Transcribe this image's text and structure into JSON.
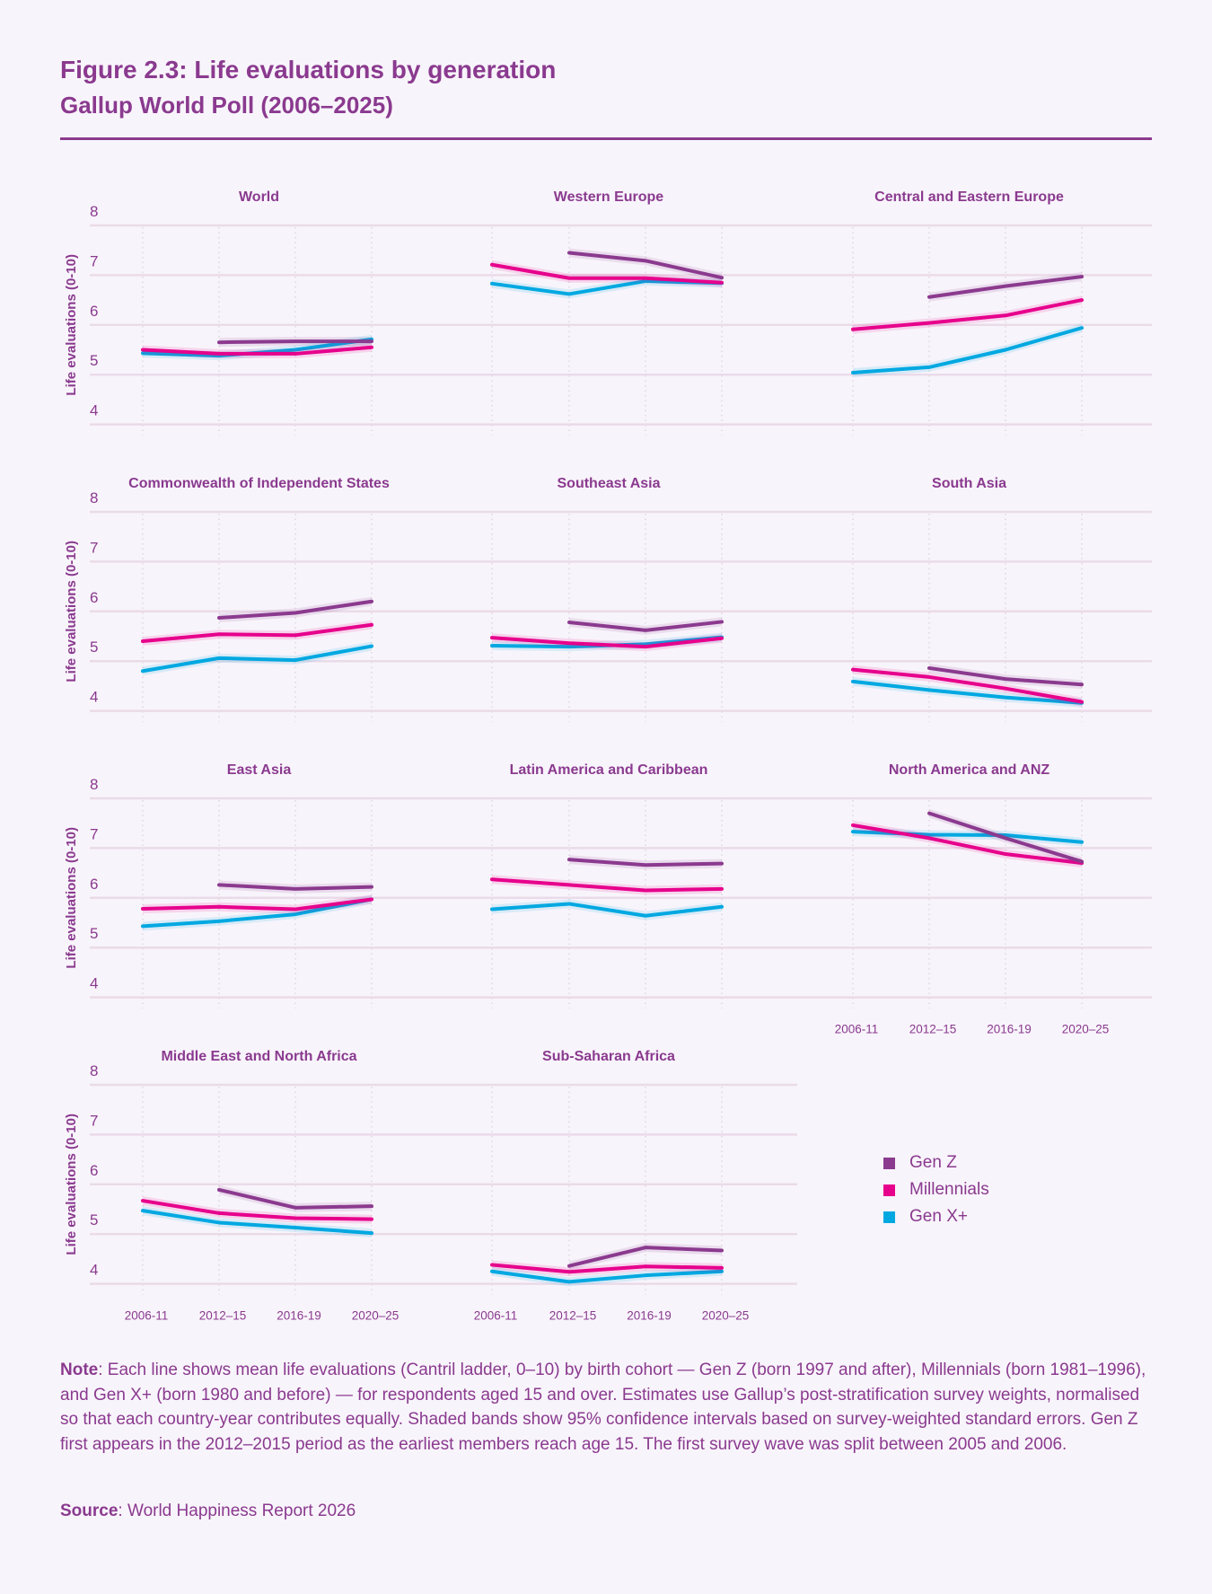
{
  "header": {
    "title": "Figure 2.3: Life evaluations by generation",
    "subtitle": "Gallup World Poll (2006–2025)"
  },
  "legend": [
    {
      "label": "Gen Z",
      "color": "#8b3a8f"
    },
    {
      "label": "Millennials",
      "color": "#e6008c"
    },
    {
      "label": "Gen X+",
      "color": "#00a8e1"
    }
  ],
  "note": {
    "label": "Note",
    "text": ": Each line shows mean life evaluations (Cantril ladder, 0–10) by birth cohort — Gen Z (born 1997 and after), Millennials (born 1981–1996), and Gen X+ (born 1980 and before) — for respondents aged 15 and over. Estimates use Gallup’s post-stratification survey weights, normalised so that each country-year contributes equally. Shaded bands show 95% confidence intervals based on survey-weighted standard errors. Gen Z first appears in the 2012–2015 period as the earliest members reach age 15. The first survey wave was split between 2005 and 2006."
  },
  "source": {
    "label": "Source",
    "text": ": World Happiness Report 2026"
  },
  "chart_data": {
    "type": "line",
    "title": "Life evaluations by generation",
    "ylabel": "Life evaluations (0-10)",
    "xlabel": "",
    "x": [
      "2006-11",
      "2012–15",
      "2016-19",
      "2020–25"
    ],
    "ylim": [
      4,
      8
    ],
    "yticks": [
      4,
      5,
      6,
      7,
      8
    ],
    "grid": true,
    "legend_position": "bottom-right",
    "series_names": [
      "Gen Z",
      "Millennials",
      "Gen X+"
    ],
    "panels": [
      {
        "title": "World",
        "series": [
          {
            "name": "Gen Z",
            "values": [
              null,
              5.65,
              5.67,
              5.67
            ]
          },
          {
            "name": "Millennials",
            "values": [
              5.5,
              5.42,
              5.42,
              5.55
            ]
          },
          {
            "name": "Gen X+",
            "values": [
              5.43,
              5.38,
              5.5,
              5.71
            ]
          }
        ]
      },
      {
        "title": "Western Europe",
        "series": [
          {
            "name": "Gen Z",
            "values": [
              null,
              7.45,
              7.29,
              6.95
            ]
          },
          {
            "name": "Millennials",
            "values": [
              7.21,
              6.94,
              6.94,
              6.85
            ]
          },
          {
            "name": "Gen X+",
            "values": [
              6.83,
              6.62,
              6.88,
              6.84
            ]
          }
        ]
      },
      {
        "title": "Central and Eastern Europe",
        "series": [
          {
            "name": "Gen Z",
            "values": [
              null,
              6.56,
              6.78,
              6.97
            ]
          },
          {
            "name": "Millennials",
            "values": [
              5.91,
              6.04,
              6.19,
              6.5
            ]
          },
          {
            "name": "Gen X+",
            "values": [
              5.04,
              5.15,
              5.5,
              5.94
            ]
          }
        ]
      },
      {
        "title": "Commonwealth of Independent States",
        "series": [
          {
            "name": "Gen Z",
            "values": [
              null,
              5.87,
              5.97,
              6.2
            ]
          },
          {
            "name": "Millennials",
            "values": [
              5.4,
              5.54,
              5.52,
              5.73
            ]
          },
          {
            "name": "Gen X+",
            "values": [
              4.8,
              5.06,
              5.02,
              5.3
            ]
          }
        ]
      },
      {
        "title": "Southeast Asia",
        "series": [
          {
            "name": "Gen Z",
            "values": [
              null,
              5.78,
              5.62,
              5.79
            ]
          },
          {
            "name": "Millennials",
            "values": [
              5.47,
              5.36,
              5.29,
              5.46
            ]
          },
          {
            "name": "Gen X+",
            "values": [
              5.31,
              5.29,
              5.34,
              5.48
            ]
          }
        ]
      },
      {
        "title": "South Asia",
        "series": [
          {
            "name": "Gen Z",
            "values": [
              null,
              4.86,
              4.64,
              4.53
            ]
          },
          {
            "name": "Millennials",
            "values": [
              4.83,
              4.68,
              4.45,
              4.18
            ]
          },
          {
            "name": "Gen X+",
            "values": [
              4.59,
              4.42,
              4.27,
              4.16
            ]
          }
        ]
      },
      {
        "title": "East Asia",
        "series": [
          {
            "name": "Gen Z",
            "values": [
              null,
              6.26,
              6.18,
              6.22
            ]
          },
          {
            "name": "Millennials",
            "values": [
              5.78,
              5.82,
              5.77,
              5.97
            ]
          },
          {
            "name": "Gen X+",
            "values": [
              5.43,
              5.53,
              5.67,
              5.97
            ]
          }
        ]
      },
      {
        "title": "Latin America and Caribbean",
        "series": [
          {
            "name": "Gen Z",
            "values": [
              null,
              6.77,
              6.66,
              6.69
            ]
          },
          {
            "name": "Millennials",
            "values": [
              6.37,
              6.26,
              6.15,
              6.18
            ]
          },
          {
            "name": "Gen X+",
            "values": [
              5.77,
              5.88,
              5.64,
              5.82
            ]
          }
        ]
      },
      {
        "title": "North America and ANZ",
        "series": [
          {
            "name": "Gen Z",
            "values": [
              null,
              7.7,
              7.2,
              6.73
            ]
          },
          {
            "name": "Millennials",
            "values": [
              7.46,
              7.2,
              6.88,
              6.7
            ]
          },
          {
            "name": "Gen X+",
            "values": [
              7.33,
              7.27,
              7.26,
              7.12
            ]
          }
        ]
      },
      {
        "title": "Middle East and North Africa",
        "series": [
          {
            "name": "Gen Z",
            "values": [
              null,
              5.89,
              5.53,
              5.56
            ]
          },
          {
            "name": "Millennials",
            "values": [
              5.67,
              5.42,
              5.32,
              5.3
            ]
          },
          {
            "name": "Gen X+",
            "values": [
              5.47,
              5.23,
              5.13,
              5.02
            ]
          }
        ]
      },
      {
        "title": "Sub-Saharan Africa",
        "series": [
          {
            "name": "Gen Z",
            "values": [
              null,
              4.36,
              4.73,
              4.67
            ]
          },
          {
            "name": "Millennials",
            "values": [
              4.38,
              4.24,
              4.35,
              4.32
            ]
          },
          {
            "name": "Gen X+",
            "values": [
              4.25,
              4.04,
              4.17,
              4.25
            ]
          }
        ]
      }
    ]
  }
}
